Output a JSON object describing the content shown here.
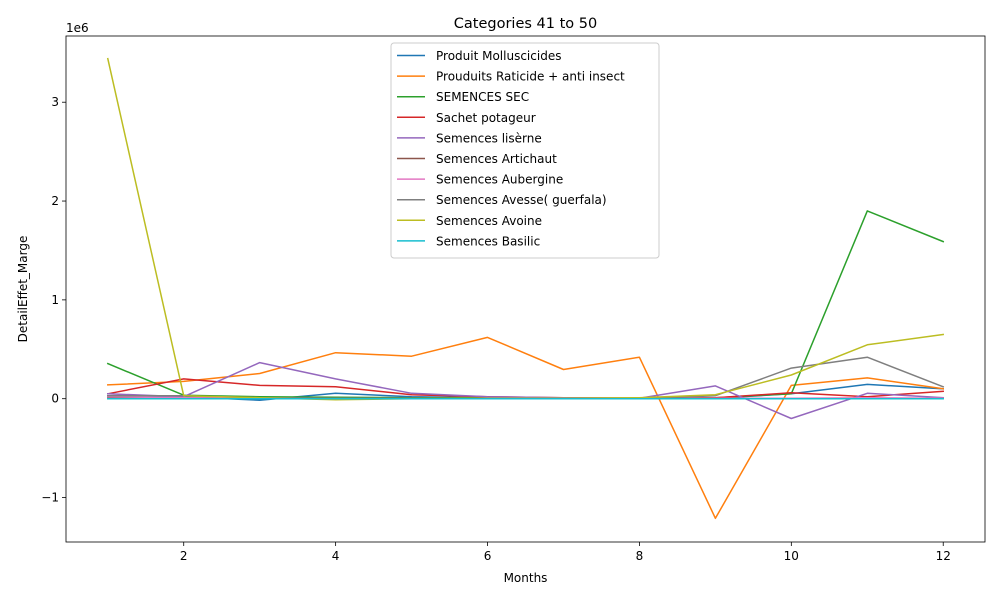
{
  "chart_data": {
    "type": "line",
    "title": "Categories 41 to 50",
    "xlabel": "Months",
    "ylabel": "DetailEffet_Marge",
    "y_offset_label": "1e6",
    "xlim": [
      0.45,
      12.55
    ],
    "ylim": [
      -1450000,
      3670000
    ],
    "x_ticks": [
      2,
      4,
      6,
      8,
      10,
      12
    ],
    "y_ticks": [
      -1000000,
      0,
      1000000,
      2000000,
      3000000
    ],
    "y_tick_labels": [
      "−1",
      "0",
      "1",
      "2",
      "3"
    ],
    "grid": false,
    "legend_position": "top-center",
    "x": [
      1,
      2,
      3,
      4,
      5,
      6,
      7,
      8,
      9,
      10,
      11,
      12
    ],
    "series": [
      {
        "name": "Produit Molluscicides",
        "color": "#1f77b4",
        "values": [
          30000,
          20000,
          -15000,
          55000,
          20000,
          10000,
          5000,
          0,
          5000,
          50000,
          145000,
          100000
        ]
      },
      {
        "name": "Prouduits Raticide + anti insect",
        "color": "#ff7f0e",
        "values": [
          140000,
          175000,
          255000,
          465000,
          430000,
          620000,
          295000,
          420000,
          -1210000,
          135000,
          210000,
          100000
        ]
      },
      {
        "name": "SEMENCES SEC",
        "color": "#2ca02c",
        "values": [
          355000,
          35000,
          20000,
          15000,
          10000,
          10000,
          5000,
          0,
          10000,
          50000,
          1900000,
          1590000
        ]
      },
      {
        "name": "Sachet potageur",
        "color": "#d62728",
        "values": [
          50000,
          200000,
          135000,
          120000,
          40000,
          20000,
          10000,
          5000,
          10000,
          60000,
          20000,
          75000
        ]
      },
      {
        "name": "Semences  lisèrne",
        "color": "#9467bd",
        "values": [
          50000,
          20000,
          365000,
          200000,
          55000,
          20000,
          10000,
          5000,
          130000,
          -200000,
          55000,
          10000
        ]
      },
      {
        "name": "Semences Artichaut",
        "color": "#8c564b",
        "values": [
          10000,
          10000,
          5000,
          5000,
          5000,
          5000,
          5000,
          0,
          5000,
          5000,
          5000,
          5000
        ]
      },
      {
        "name": "Semences Aubergine",
        "color": "#e377c2",
        "values": [
          20000,
          10000,
          5000,
          5000,
          5000,
          5000,
          5000,
          0,
          5000,
          5000,
          10000,
          5000
        ]
      },
      {
        "name": "Semences Avesse( guerfala)",
        "color": "#7f7f7f",
        "values": [
          30000,
          30000,
          10000,
          5000,
          5000,
          5000,
          0,
          0,
          30000,
          310000,
          420000,
          120000
        ]
      },
      {
        "name": "Semences Avoine",
        "color": "#bcbd22",
        "values": [
          3440000,
          30000,
          10000,
          -10000,
          0,
          5000,
          5000,
          10000,
          40000,
          240000,
          545000,
          650000
        ]
      },
      {
        "name": "Semences Basilic",
        "color": "#17becf",
        "values": [
          0,
          0,
          0,
          0,
          0,
          0,
          0,
          0,
          0,
          0,
          0,
          0
        ]
      }
    ]
  }
}
